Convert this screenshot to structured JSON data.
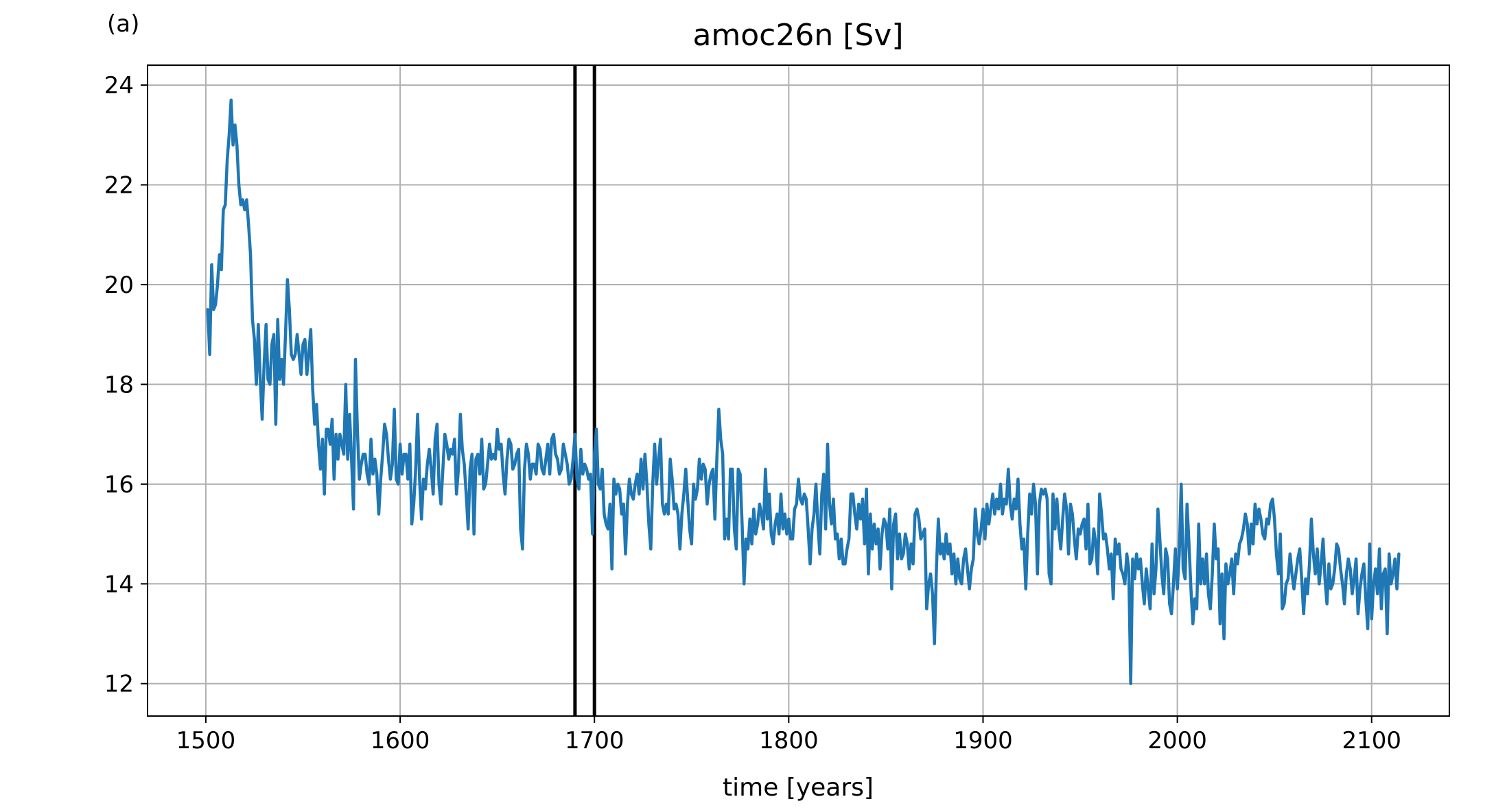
{
  "panel_label": "(a)",
  "chart_data": {
    "type": "line",
    "title": "amoc26n [Sv]",
    "xlabel": "time [years]",
    "ylabel": "",
    "xlim": [
      1470,
      2140
    ],
    "ylim": [
      11.35,
      24.4
    ],
    "xticks": [
      1500,
      1600,
      1700,
      1800,
      1900,
      2000,
      2100
    ],
    "yticks": [
      12,
      14,
      16,
      18,
      20,
      22,
      24
    ],
    "grid": true,
    "line_color": "#1f77b4",
    "vlines": [
      1690,
      1700
    ],
    "vline_color": "#000000",
    "series": [
      {
        "x_start": 1501,
        "x_step": 1,
        "values": [
          19.5,
          18.6,
          20.4,
          19.5,
          19.6,
          20.0,
          20.6,
          20.3,
          21.5,
          21.6,
          22.5,
          23.0,
          23.7,
          22.8,
          23.2,
          22.8,
          22.0,
          21.6,
          21.7,
          21.5,
          21.7,
          21.2,
          20.6,
          19.3,
          18.9,
          18.0,
          19.2,
          18.1,
          17.3,
          18.4,
          19.2,
          18.1,
          18.0,
          18.8,
          19.0,
          17.2,
          19.3,
          18.1,
          18.5,
          18.0,
          19.0,
          20.1,
          19.5,
          18.6,
          18.5,
          18.6,
          19.0,
          18.6,
          18.2,
          18.8,
          18.9,
          18.2,
          18.6,
          19.1,
          17.9,
          17.2,
          17.6,
          16.8,
          16.3,
          16.9,
          15.8,
          17.1,
          17.1,
          16.8,
          17.3,
          16.1,
          17.0,
          16.5,
          17.0,
          16.8,
          16.6,
          18.0,
          16.5,
          17.4,
          16.5,
          15.5,
          18.5,
          17.1,
          16.1,
          16.4,
          16.6,
          16.6,
          16.2,
          16.0,
          16.9,
          16.2,
          16.5,
          16.2,
          15.4,
          16.1,
          16.6,
          17.2,
          17.0,
          16.5,
          16.1,
          16.4,
          17.5,
          16.1,
          16.0,
          16.8,
          16.2,
          16.6,
          16.6,
          16.1,
          16.8,
          15.2,
          15.6,
          16.3,
          17.4,
          16.1,
          15.3,
          16.1,
          15.9,
          16.4,
          16.7,
          16.3,
          15.8,
          16.9,
          17.2,
          16.0,
          15.6,
          16.3,
          17.0,
          16.8,
          16.5,
          16.7,
          16.6,
          16.9,
          15.8,
          16.3,
          17.4,
          16.7,
          16.4,
          15.8,
          15.1,
          16.3,
          16.6,
          15.0,
          16.5,
          16.6,
          16.2,
          16.9,
          15.9,
          16.0,
          16.4,
          16.8,
          16.5,
          16.6,
          16.5,
          17.1,
          16.7,
          16.8,
          16.2,
          15.8,
          16.5,
          16.9,
          16.8,
          16.3,
          16.4,
          16.6,
          16.7,
          15.1,
          14.7,
          16.3,
          16.8,
          16.6,
          16.1,
          16.4,
          16.4,
          16.2,
          16.8,
          16.7,
          16.3,
          16.2,
          16.5,
          16.8,
          16.2,
          16.9,
          17.0,
          16.6,
          16.5,
          16.2,
          16.3,
          16.8,
          16.6,
          16.4,
          16.0,
          16.1,
          16.5,
          17.0,
          16.1,
          15.9,
          16.7,
          16.2,
          16.4,
          16.3,
          16.1,
          16.2,
          15.0,
          16.6,
          17.1,
          16.0,
          15.9,
          16.3,
          15.4,
          15.2,
          15.1,
          15.6,
          14.3,
          16.1,
          15.8,
          16.0,
          15.9,
          15.4,
          15.6,
          14.6,
          15.6,
          16.1,
          15.8,
          15.7,
          16.0,
          16.2,
          15.8,
          16.5,
          15.9,
          16.6,
          16.0,
          15.2,
          14.7,
          16.0,
          16.8,
          16.0,
          16.5,
          16.9,
          15.6,
          15.4,
          15.6,
          15.4,
          16.5,
          16.1,
          15.5,
          15.6,
          15.4,
          14.7,
          15.4,
          15.8,
          16.3,
          15.7,
          15.1,
          14.8,
          16.0,
          15.7,
          15.9,
          16.5,
          16.1,
          16.4,
          16.3,
          15.6,
          16.0,
          16.2,
          16.3,
          15.3,
          16.5,
          17.5,
          16.9,
          16.6,
          14.9,
          15.3,
          14.9,
          16.3,
          16.3,
          15.1,
          14.7,
          16.3,
          16.2,
          15.2,
          14.0,
          14.9,
          14.7,
          15.3,
          14.8,
          15.5,
          15.0,
          15.2,
          15.6,
          15.4,
          15.1,
          16.3,
          15.3,
          15.8,
          15.0,
          14.8,
          15.2,
          15.4,
          15.0,
          15.8,
          15.1,
          15.4,
          15.0,
          15.3,
          14.9,
          14.9,
          15.5,
          15.6,
          16.1,
          15.7,
          15.6,
          15.8,
          15.7,
          15.1,
          14.4,
          15.1,
          15.4,
          16.0,
          15.2,
          14.6,
          15.8,
          16.2,
          15.1,
          16.8,
          15.6,
          15.2,
          15.7,
          14.9,
          15.0,
          14.5,
          14.9,
          14.4,
          14.4,
          14.7,
          14.9,
          15.8,
          15.8,
          15.4,
          15.1,
          15.6,
          15.3,
          15.7,
          14.8,
          15.9,
          14.2,
          15.4,
          14.7,
          15.2,
          14.8,
          15.1,
          14.3,
          15.0,
          15.3,
          15.2,
          14.7,
          15.5,
          13.9,
          15.2,
          15.4,
          14.5,
          15.0,
          14.5,
          14.6,
          15.0,
          14.8,
          14.3,
          14.8,
          14.4,
          15.4,
          15.5,
          15.3,
          14.9,
          15.0,
          15.1,
          13.5,
          14.0,
          14.2,
          13.8,
          12.8,
          14.3,
          15.3,
          14.6,
          14.8,
          14.5,
          15.0,
          14.6,
          14.8,
          14.2,
          14.6,
          14.0,
          14.5,
          14.1,
          14.0,
          14.5,
          14.7,
          14.3,
          13.9,
          14.3,
          14.5,
          15.5,
          15.0,
          14.8,
          15.1,
          15.5,
          14.9,
          15.6,
          15.2,
          15.5,
          15.8,
          15.4,
          15.7,
          15.5,
          16.0,
          15.4,
          15.7,
          15.6,
          16.3,
          15.6,
          15.3,
          15.7,
          15.5,
          16.1,
          15.2,
          14.7,
          14.9,
          13.9,
          15.0,
          15.8,
          15.4,
          16.0,
          15.6,
          14.2,
          15.6,
          15.9,
          15.8,
          15.9,
          15.7,
          14.2,
          14.0,
          15.8,
          15.1,
          15.7,
          15.1,
          14.7,
          15.3,
          15.8,
          15.5,
          14.6,
          15.6,
          15.4,
          14.9,
          14.5,
          15.1,
          15.0,
          15.2,
          15.3,
          14.7,
          15.6,
          14.4,
          14.5,
          15.1,
          14.8,
          14.2,
          15.8,
          15.4,
          14.9,
          15.0,
          14.7,
          14.3,
          14.6,
          13.7,
          14.9,
          14.6,
          14.8,
          14.3,
          14.2,
          14.0,
          14.6,
          14.3,
          12.0,
          14.5,
          14.1,
          14.6,
          14.3,
          14.5,
          14.0,
          13.6,
          14.3,
          13.9,
          13.5,
          14.8,
          13.8,
          14.3,
          15.5,
          14.9,
          14.2,
          13.8,
          14.7,
          14.5,
          13.6,
          13.4,
          14.0,
          14.7,
          13.9,
          14.6,
          16.0,
          14.3,
          14.1,
          15.6,
          14.8,
          13.9,
          13.2,
          13.7,
          13.5,
          15.2,
          14.0,
          14.5,
          14.0,
          14.6,
          13.8,
          13.5,
          14.2,
          15.2,
          14.5,
          14.7,
          13.2,
          14.2,
          12.9,
          14.4,
          14.0,
          14.2,
          14.5,
          13.8,
          14.6,
          14.4,
          14.8,
          14.9,
          15.1,
          15.4,
          15.2,
          14.6,
          15.2,
          14.8,
          15.6,
          15.2,
          15.5,
          15.3,
          15.0,
          14.9,
          15.3,
          15.2,
          15.6,
          15.7,
          15.3,
          14.6,
          14.2,
          15.0,
          13.5,
          13.6,
          14.0,
          14.1,
          14.6,
          14.2,
          13.9,
          14.2,
          14.5,
          14.7,
          14.1,
          13.4,
          14.1,
          13.8,
          14.4,
          15.3,
          14.6,
          14.2,
          14.7,
          14.0,
          14.4,
          14.9,
          14.1,
          13.6,
          14.4,
          13.9,
          14.0,
          14.3,
          14.8,
          14.7,
          14.3,
          14.0,
          13.6,
          14.2,
          14.5,
          14.3,
          13.8,
          14.1,
          14.5,
          13.4,
          13.9,
          14.2,
          14.4,
          13.7,
          13.1,
          14.8,
          13.3,
          14.0,
          14.3,
          13.8,
          14.7,
          13.5,
          14.2,
          14.3,
          13.0,
          14.6,
          14.0,
          14.2,
          14.5,
          13.9,
          14.6
        ]
      }
    ]
  }
}
